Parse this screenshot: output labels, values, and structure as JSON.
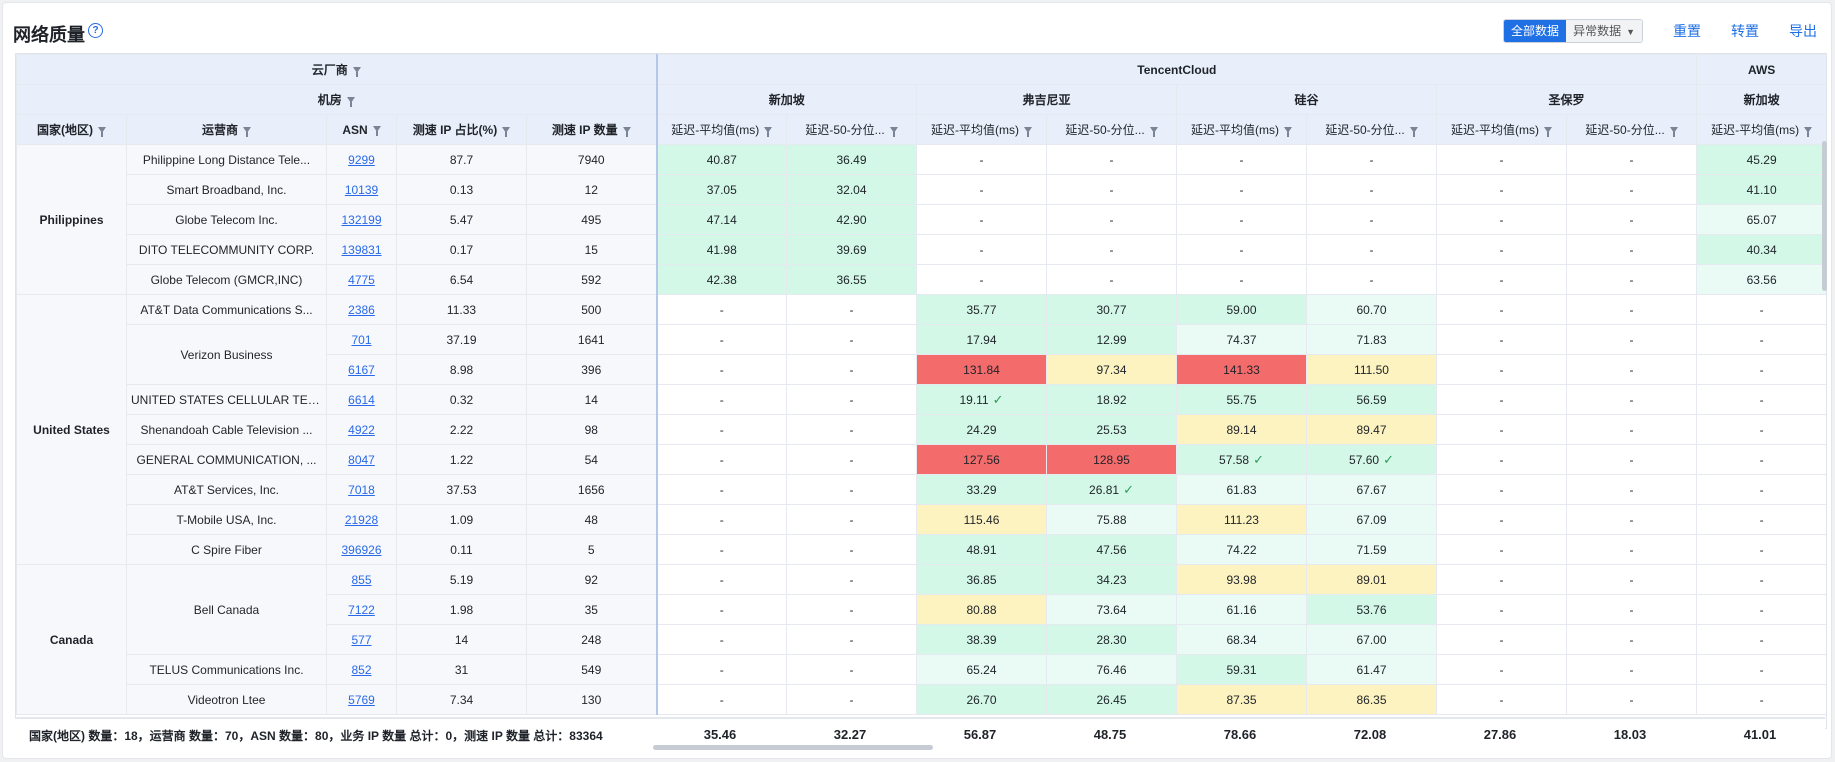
{
  "page": {
    "title": "网络质量"
  },
  "toolbar": {
    "toggle_all": "全部数据",
    "toggle_abnormal": "异常数据",
    "reset": "重置",
    "pivot": "转置",
    "export": "导出"
  },
  "header": {
    "cloud_vendor": "云厂商",
    "datacenter": "机房",
    "tencent": "TencentCloud",
    "aws": "AWS",
    "dc_sg": "新加坡",
    "dc_va": "弗吉尼亚",
    "dc_sv": "硅谷",
    "dc_sp": "圣保罗",
    "dc_aws_sg": "新加坡",
    "col_country": "国家(地区)",
    "col_operator": "运营商",
    "col_asn": "ASN",
    "col_ratio": "测速 IP 占比(%)",
    "col_count": "测速 IP 数量",
    "col_avg": "延迟-平均值(ms)",
    "col_p50": "延迟-50-分位..."
  },
  "rows": [
    {
      "country": "Philippines",
      "operator": "Philippine Long Distance Tele...",
      "asn": "9299",
      "ratio": "87.7",
      "count": "7940",
      "v": [
        "40.87",
        "36.49",
        "-",
        "-",
        "-",
        "-",
        "-",
        "-",
        "45.29"
      ]
    },
    {
      "country": "",
      "operator": "Smart Broadband, Inc.",
      "asn": "10139",
      "ratio": "0.13",
      "count": "12",
      "v": [
        "37.05",
        "32.04",
        "-",
        "-",
        "-",
        "-",
        "-",
        "-",
        "41.10"
      ]
    },
    {
      "country": "",
      "operator": "Globe Telecom Inc.",
      "asn": "132199",
      "ratio": "5.47",
      "count": "495",
      "v": [
        "47.14",
        "42.90",
        "-",
        "-",
        "-",
        "-",
        "-",
        "-",
        "65.07"
      ]
    },
    {
      "country": "",
      "operator": "DITO TELECOMMUNITY CORP.",
      "asn": "139831",
      "ratio": "0.17",
      "count": "15",
      "v": [
        "41.98",
        "39.69",
        "-",
        "-",
        "-",
        "-",
        "-",
        "-",
        "40.34"
      ]
    },
    {
      "country": "",
      "operator": "Globe Telecom (GMCR,INC)",
      "asn": "4775",
      "ratio": "6.54",
      "count": "592",
      "v": [
        "42.38",
        "36.55",
        "-",
        "-",
        "-",
        "-",
        "-",
        "-",
        "63.56"
      ]
    },
    {
      "country": "United States",
      "operator": "AT&T Data Communications S...",
      "asn": "2386",
      "ratio": "11.33",
      "count": "500",
      "v": [
        "-",
        "-",
        "35.77",
        "30.77",
        "59.00",
        "60.70",
        "-",
        "-",
        "-"
      ]
    },
    {
      "country": "",
      "operator": "Verizon Business",
      "asn": "701",
      "ratio": "37.19",
      "count": "1641",
      "v": [
        "-",
        "-",
        "17.94",
        "12.99",
        "74.37",
        "71.83",
        "-",
        "-",
        "-"
      ]
    },
    {
      "country": "",
      "operator": "",
      "asn": "6167",
      "ratio": "8.98",
      "count": "396",
      "v": [
        "-",
        "-",
        "131.84",
        "97.34",
        "141.33",
        "111.50",
        "-",
        "-",
        "-"
      ]
    },
    {
      "country": "",
      "operator": "UNITED STATES CELLULAR TEL...",
      "asn": "6614",
      "ratio": "0.32",
      "count": "14",
      "v": [
        "-",
        "-",
        "19.11",
        "18.92",
        "55.75",
        "56.59",
        "-",
        "-",
        "-"
      ]
    },
    {
      "country": "",
      "operator": "Shenandoah Cable Television ...",
      "asn": "4922",
      "ratio": "2.22",
      "count": "98",
      "v": [
        "-",
        "-",
        "24.29",
        "25.53",
        "89.14",
        "89.47",
        "-",
        "-",
        "-"
      ]
    },
    {
      "country": "",
      "operator": "GENERAL COMMUNICATION, ...",
      "asn": "8047",
      "ratio": "1.22",
      "count": "54",
      "v": [
        "-",
        "-",
        "127.56",
        "128.95",
        "57.58",
        "57.60",
        "-",
        "-",
        "-"
      ]
    },
    {
      "country": "",
      "operator": "AT&T Services, Inc.",
      "asn": "7018",
      "ratio": "37.53",
      "count": "1656",
      "v": [
        "-",
        "-",
        "33.29",
        "26.81",
        "61.83",
        "67.67",
        "-",
        "-",
        "-"
      ]
    },
    {
      "country": "",
      "operator": "T-Mobile USA, Inc.",
      "asn": "21928",
      "ratio": "1.09",
      "count": "48",
      "v": [
        "-",
        "-",
        "115.46",
        "75.88",
        "111.23",
        "67.09",
        "-",
        "-",
        "-"
      ]
    },
    {
      "country": "",
      "operator": "C Spire Fiber",
      "asn": "396926",
      "ratio": "0.11",
      "count": "5",
      "v": [
        "-",
        "-",
        "48.91",
        "47.56",
        "74.22",
        "71.59",
        "-",
        "-",
        "-"
      ]
    },
    {
      "country": "Canada",
      "operator": "Bell Canada",
      "asn": "855",
      "ratio": "5.19",
      "count": "92",
      "v": [
        "-",
        "-",
        "36.85",
        "34.23",
        "93.98",
        "89.01",
        "-",
        "-",
        "-"
      ]
    },
    {
      "country": "",
      "operator": "",
      "asn": "7122",
      "ratio": "1.98",
      "count": "35",
      "v": [
        "-",
        "-",
        "80.88",
        "73.64",
        "61.16",
        "53.76",
        "-",
        "-",
        "-"
      ]
    },
    {
      "country": "",
      "operator": "",
      "asn": "577",
      "ratio": "14",
      "count": "248",
      "v": [
        "-",
        "-",
        "38.39",
        "28.30",
        "68.34",
        "67.00",
        "-",
        "-",
        "-"
      ]
    },
    {
      "country": "",
      "operator": "TELUS Communications Inc.",
      "asn": "852",
      "ratio": "31",
      "count": "549",
      "v": [
        "-",
        "-",
        "65.24",
        "76.46",
        "59.31",
        "61.47",
        "-",
        "-",
        "-"
      ]
    },
    {
      "country": "",
      "operator": "Videotron Ltee",
      "asn": "5769",
      "ratio": "7.34",
      "count": "130",
      "v": [
        "-",
        "-",
        "26.70",
        "26.45",
        "87.35",
        "86.35",
        "-",
        "-",
        "-"
      ]
    }
  ],
  "footer": {
    "summary": "国家(地区) 数量：18，运营商 数量：70，ASN 数量：80，业务 IP 数量 总计：0，测速 IP 数量 总计：83364",
    "values": [
      "35.46",
      "32.27",
      "56.87",
      "48.75",
      "78.66",
      "72.08",
      "27.86",
      "18.03",
      "41.01"
    ]
  }
}
